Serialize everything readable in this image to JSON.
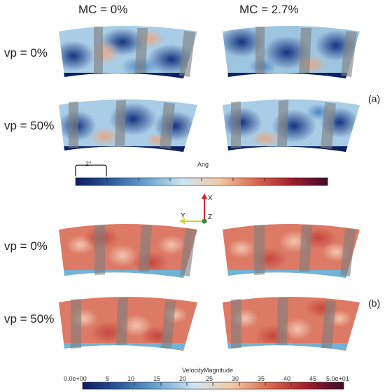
{
  "columns": {
    "left": "MC = 0%",
    "right": "MC = 2.7%"
  },
  "panel_a": {
    "label": "(a)",
    "rows": [
      "vp = 0%",
      "vp = 50%"
    ],
    "colorbar": {
      "title": "Ang",
      "scale_label": "2°",
      "colors": [
        "#0d1b5e",
        "#2c5aa0",
        "#6ea6d2",
        "#cfe6f1",
        "#f2c9a6",
        "#d9694f",
        "#a11f2c",
        "#3e0a2a"
      ]
    }
  },
  "panel_b": {
    "label": "(b)",
    "rows": [
      "vp = 0%",
      "vp = 50%"
    ],
    "colorbar": {
      "title": "VelocityMagnitude",
      "ticks": [
        "0.0e+00",
        "5",
        "10",
        "15",
        "20",
        "25",
        "30",
        "35",
        "40",
        "45",
        "5.0e+01"
      ],
      "colors": [
        "#0d1b5e",
        "#2c5aa0",
        "#6ea6d2",
        "#cfe6f1",
        "#f2c9a6",
        "#d9694f",
        "#a11f2c",
        "#3e0a2a"
      ]
    }
  },
  "axes": {
    "x": "X",
    "y": "Y",
    "z": "Z"
  }
}
